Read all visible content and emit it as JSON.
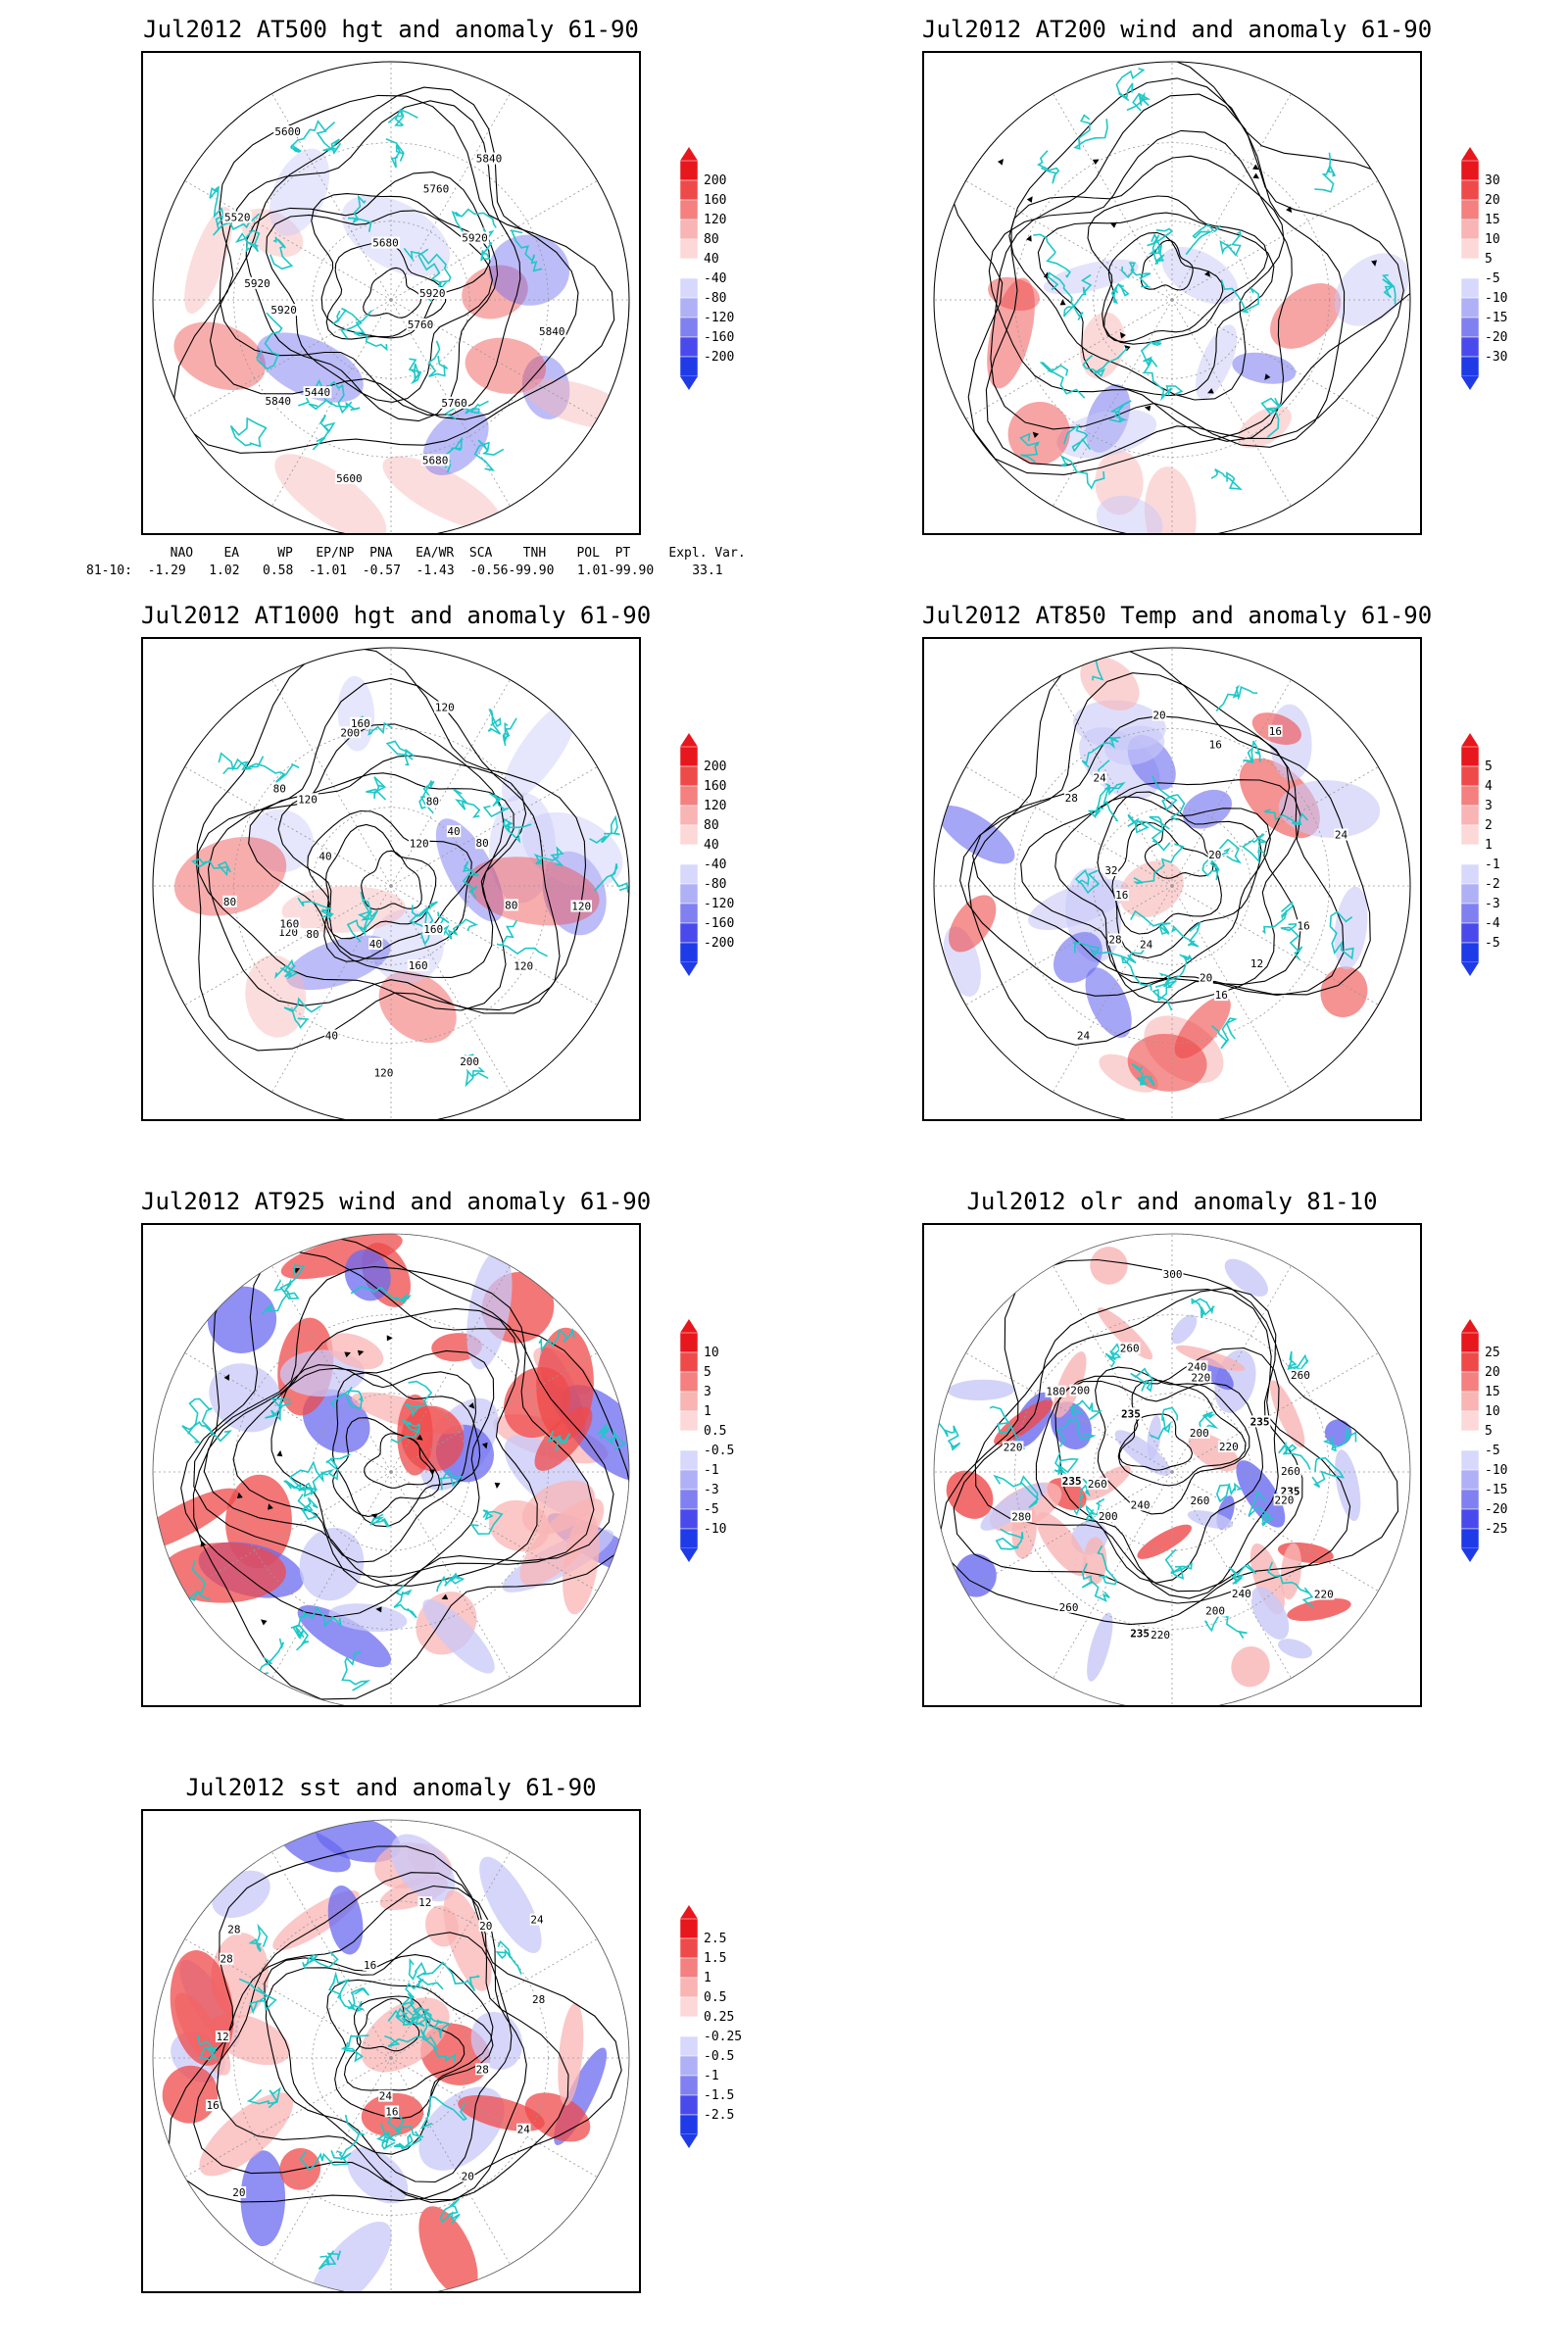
{
  "panels": [
    {
      "id": "p1",
      "title": "Jul2012 AT500 hgt and anomaly 61-90",
      "colorbar": [
        "200",
        "160",
        "120",
        "80",
        "40",
        "-40",
        "-80",
        "-120",
        "-160",
        "-200"
      ],
      "contour_labels": [
        "5840",
        "5760",
        "5760",
        "5680",
        "5600",
        "5440",
        "5840",
        "5920",
        "5920",
        "5520",
        "5600",
        "5680",
        "5760",
        "5840",
        "5920",
        "5920"
      ],
      "fill_mode": "light"
    },
    {
      "id": "p2",
      "title": "Jul2012 AT200 wind and anomaly 61-90",
      "colorbar": [
        "30",
        "20",
        "15",
        "10",
        "5",
        "-5",
        "-10",
        "-15",
        "-20",
        "-30"
      ],
      "contour_labels": [],
      "fill_mode": "streamline"
    },
    {
      "id": "p3",
      "title": "Jul2012 AT1000 hgt and anomaly 61-90",
      "colorbar": [
        "200",
        "160",
        "120",
        "80",
        "40",
        "-40",
        "-80",
        "-120",
        "-160",
        "-200"
      ],
      "contour_labels": [
        "80",
        "120",
        "160",
        "200",
        "160",
        "120",
        "40",
        "40",
        "80",
        "120",
        "160",
        "80",
        "40",
        "80",
        "120",
        "200",
        "160",
        "120",
        "80",
        "120",
        "40",
        "80",
        "120"
      ],
      "fill_mode": "light"
    },
    {
      "id": "p4",
      "title": "Jul2012 AT850 Temp and anomaly 61-90",
      "colorbar": [
        "5",
        "4",
        "3",
        "2",
        "1",
        "-1",
        "-2",
        "-3",
        "-4",
        "-5"
      ],
      "contour_labels": [
        "16",
        "12",
        "16",
        "20",
        "24",
        "24",
        "28",
        "16",
        "32",
        "28",
        "24",
        "20",
        "16",
        "16",
        "20",
        "24"
      ],
      "fill_mode": "medium"
    },
    {
      "id": "p5",
      "title": "Jul2012 AT925 wind and anomaly 61-90",
      "colorbar": [
        "10",
        "5",
        "3",
        "1",
        "0.5",
        "-0.5",
        "-1",
        "-3",
        "-5",
        "-10"
      ],
      "contour_labels": [],
      "fill_mode": "strong"
    },
    {
      "id": "p6",
      "title": "Jul2012 olr and anomaly 81-10",
      "colorbar": [
        "25",
        "20",
        "15",
        "10",
        "5",
        "-5",
        "-10",
        "-15",
        "-20",
        "-25"
      ],
      "contour_labels": [
        "235",
        "220",
        "220",
        "260",
        "240",
        "200",
        "220",
        "235",
        "260",
        "240",
        "200",
        "280",
        "260",
        "235",
        "220",
        "180",
        "200",
        "235",
        "260",
        "300",
        "240",
        "220",
        "200",
        "260",
        "235",
        "220",
        "260"
      ],
      "fill_mode": "olr"
    },
    {
      "id": "p7",
      "title": "Jul2012 sst and anomaly 61-90",
      "colorbar": [
        "2.5",
        "1.5",
        "1",
        "0.5",
        "0.25",
        "-0.25",
        "-0.5",
        "-1",
        "-1.5",
        "-2.5"
      ],
      "contour_labels": [
        "28",
        "24",
        "20",
        "16",
        "24",
        "20",
        "16",
        "12",
        "28",
        "28",
        "16",
        "12",
        "20",
        "24",
        "28"
      ],
      "fill_mode": "sst"
    }
  ],
  "index_table": {
    "header": "  NAO    EA     WP   EP/NP  PNA   EA/WR  SCA    TNH    POL  PT     Expl. Var.",
    "values": "81-10:  -1.29   1.02   0.58  -1.01  -0.57  -1.43  -0.56-99.90   1.01-99.90     33.1"
  },
  "colors": {
    "coast": "#1ec8c8",
    "pos_dark": "#e8161d",
    "neg_dark": "#1f3be8",
    "scale": [
      "#e8161d",
      "#ef4a4a",
      "#f48080",
      "#f9b4b4",
      "#fcd8d8",
      "#ffffff",
      "#d8d8fc",
      "#b0b0f6",
      "#8080f0",
      "#4a4aec",
      "#1f3be8"
    ]
  }
}
